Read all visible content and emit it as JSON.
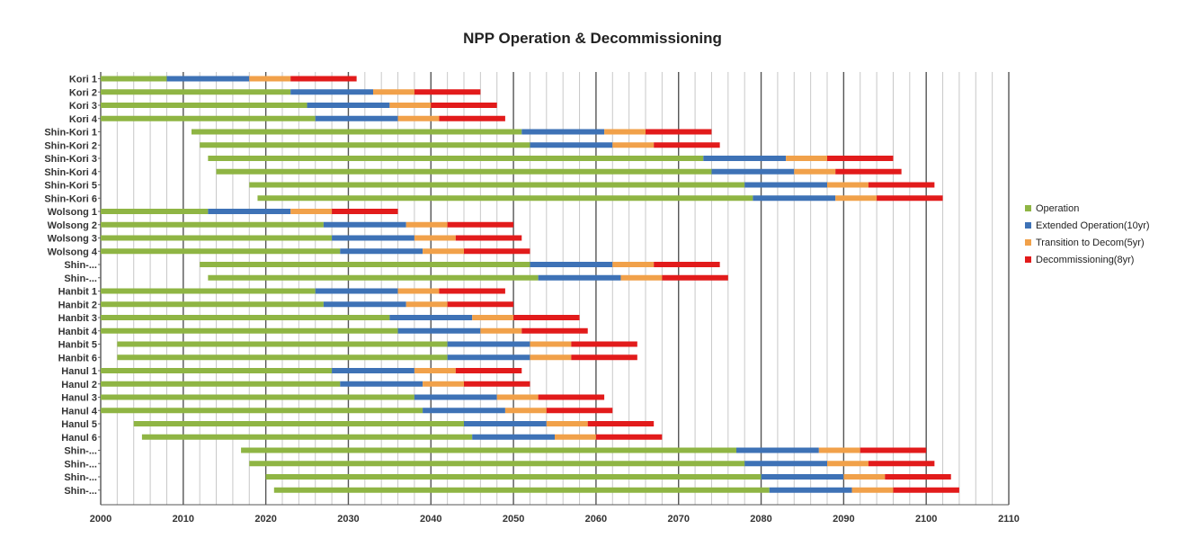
{
  "chart_data": {
    "type": "bar",
    "orientation": "horizontal-stacked",
    "title": "NPP Operation & Decommissioning",
    "xlabel": "",
    "ylabel": "",
    "xlim": [
      2000,
      2110
    ],
    "x_ticks": [
      2000,
      2010,
      2020,
      2030,
      2040,
      2050,
      2060,
      2070,
      2080,
      2090,
      2100,
      2110
    ],
    "grid": "vertical, every 2 years; bold every 10 years",
    "legend_position": "right",
    "series": [
      {
        "name": "Operation",
        "color": "#8fb544"
      },
      {
        "name": "Extended Operation(10yr)",
        "color": "#3e72b6"
      },
      {
        "name": "Transition to Decom(5yr)",
        "color": "#f1a14a"
      },
      {
        "name": "Decommissioning(8yr)",
        "color": "#e21b1b"
      }
    ],
    "categories": [
      "Kori 1",
      "Kori 2",
      "Kori 3",
      "Kori 4",
      "Shin-Kori 1",
      "Shin-Kori 2",
      "Shin-Kori 3",
      "Shin-Kori 4",
      "Shin-Kori 5",
      "Shin-Kori 6",
      "Wolsong 1",
      "Wolsong 2",
      "Wolsong 3",
      "Wolsong 4",
      "Shin-...",
      "Shin-...",
      "Hanbit 1",
      "Hanbit 2",
      "Hanbit 3",
      "Hanbit 4",
      "Hanbit 5",
      "Hanbit 6",
      "Hanul 1",
      "Hanul 2",
      "Hanul 3",
      "Hanul 4",
      "Hanul 5",
      "Hanul 6",
      "Shin-...",
      "Shin-...",
      "Shin-...",
      "Shin-..."
    ],
    "rows": [
      {
        "start": 2000,
        "operation_end": 2008,
        "extended_end": 2018,
        "transition_end": 2023,
        "decom_end": 2031
      },
      {
        "start": 2000,
        "operation_end": 2023,
        "extended_end": 2033,
        "transition_end": 2038,
        "decom_end": 2046
      },
      {
        "start": 2000,
        "operation_end": 2025,
        "extended_end": 2035,
        "transition_end": 2040,
        "decom_end": 2048
      },
      {
        "start": 2000,
        "operation_end": 2026,
        "extended_end": 2036,
        "transition_end": 2041,
        "decom_end": 2049
      },
      {
        "start": 2011,
        "operation_end": 2051,
        "extended_end": 2061,
        "transition_end": 2066,
        "decom_end": 2074
      },
      {
        "start": 2012,
        "operation_end": 2052,
        "extended_end": 2062,
        "transition_end": 2067,
        "decom_end": 2075
      },
      {
        "start": 2013,
        "operation_end": 2073,
        "extended_end": 2083,
        "transition_end": 2088,
        "decom_end": 2096
      },
      {
        "start": 2014,
        "operation_end": 2074,
        "extended_end": 2084,
        "transition_end": 2089,
        "decom_end": 2097
      },
      {
        "start": 2018,
        "operation_end": 2078,
        "extended_end": 2088,
        "transition_end": 2093,
        "decom_end": 2101
      },
      {
        "start": 2019,
        "operation_end": 2079,
        "extended_end": 2089,
        "transition_end": 2094,
        "decom_end": 2102
      },
      {
        "start": 2000,
        "operation_end": 2013,
        "extended_end": 2023,
        "transition_end": 2028,
        "decom_end": 2036
      },
      {
        "start": 2000,
        "operation_end": 2027,
        "extended_end": 2037,
        "transition_end": 2042,
        "decom_end": 2050
      },
      {
        "start": 2000,
        "operation_end": 2028,
        "extended_end": 2038,
        "transition_end": 2043,
        "decom_end": 2051
      },
      {
        "start": 2000,
        "operation_end": 2029,
        "extended_end": 2039,
        "transition_end": 2044,
        "decom_end": 2052
      },
      {
        "start": 2012,
        "operation_end": 2052,
        "extended_end": 2062,
        "transition_end": 2067,
        "decom_end": 2075
      },
      {
        "start": 2013,
        "operation_end": 2053,
        "extended_end": 2063,
        "transition_end": 2068,
        "decom_end": 2076
      },
      {
        "start": 2000,
        "operation_end": 2026,
        "extended_end": 2036,
        "transition_end": 2041,
        "decom_end": 2049
      },
      {
        "start": 2000,
        "operation_end": 2027,
        "extended_end": 2037,
        "transition_end": 2042,
        "decom_end": 2050
      },
      {
        "start": 2000,
        "operation_end": 2035,
        "extended_end": 2045,
        "transition_end": 2050,
        "decom_end": 2058
      },
      {
        "start": 2000,
        "operation_end": 2036,
        "extended_end": 2046,
        "transition_end": 2051,
        "decom_end": 2059
      },
      {
        "start": 2002,
        "operation_end": 2042,
        "extended_end": 2052,
        "transition_end": 2057,
        "decom_end": 2065
      },
      {
        "start": 2002,
        "operation_end": 2042,
        "extended_end": 2052,
        "transition_end": 2057,
        "decom_end": 2065
      },
      {
        "start": 2000,
        "operation_end": 2028,
        "extended_end": 2038,
        "transition_end": 2043,
        "decom_end": 2051
      },
      {
        "start": 2000,
        "operation_end": 2029,
        "extended_end": 2039,
        "transition_end": 2044,
        "decom_end": 2052
      },
      {
        "start": 2000,
        "operation_end": 2038,
        "extended_end": 2048,
        "transition_end": 2053,
        "decom_end": 2061
      },
      {
        "start": 2000,
        "operation_end": 2039,
        "extended_end": 2049,
        "transition_end": 2054,
        "decom_end": 2062
      },
      {
        "start": 2004,
        "operation_end": 2044,
        "extended_end": 2054,
        "transition_end": 2059,
        "decom_end": 2067
      },
      {
        "start": 2005,
        "operation_end": 2045,
        "extended_end": 2055,
        "transition_end": 2060,
        "decom_end": 2068
      },
      {
        "start": 2017,
        "operation_end": 2077,
        "extended_end": 2087,
        "transition_end": 2092,
        "decom_end": 2100
      },
      {
        "start": 2018,
        "operation_end": 2078,
        "extended_end": 2088,
        "transition_end": 2093,
        "decom_end": 2101
      },
      {
        "start": 2020,
        "operation_end": 2080,
        "extended_end": 2090,
        "transition_end": 2095,
        "decom_end": 2103
      },
      {
        "start": 2021,
        "operation_end": 2081,
        "extended_end": 2091,
        "transition_end": 2096,
        "decom_end": 2104
      }
    ]
  }
}
